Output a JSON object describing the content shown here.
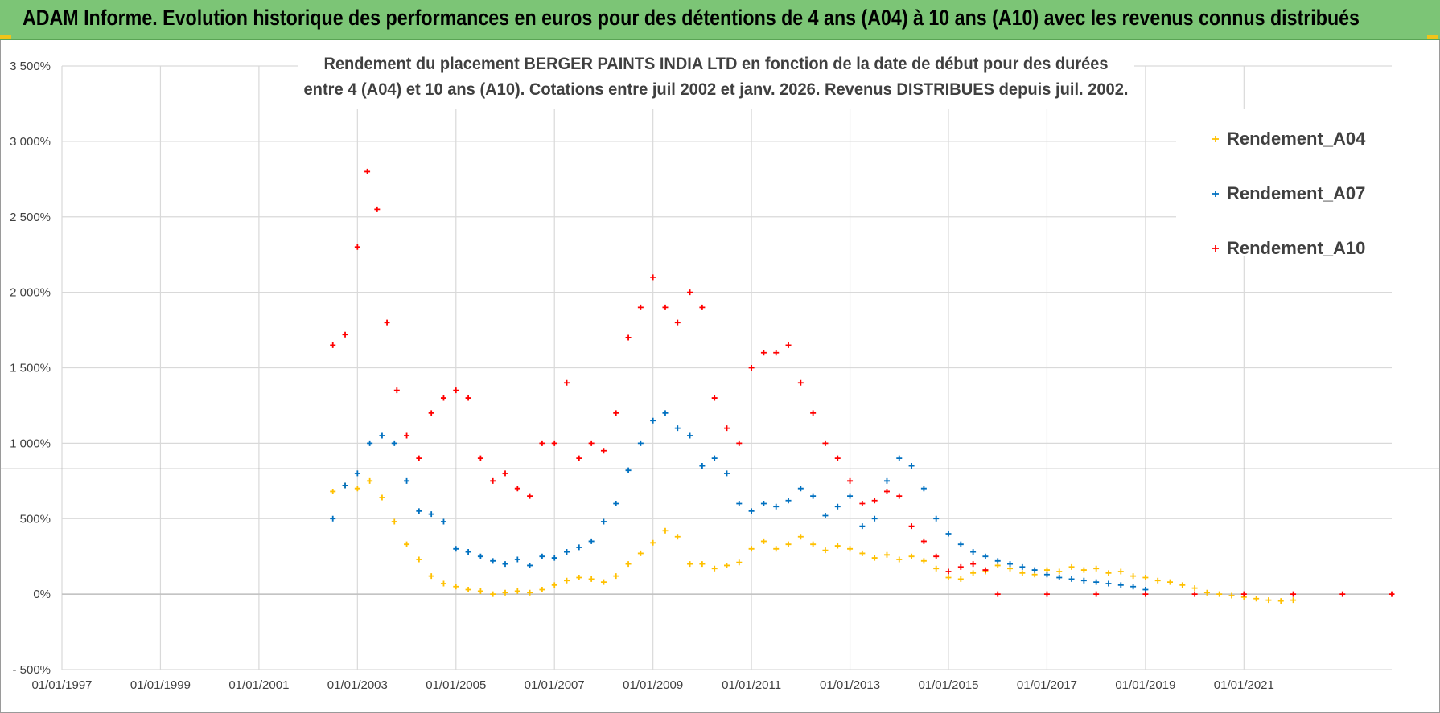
{
  "banner": {
    "title": "ADAM Informe. Evolution historique des performances en euros pour des détentions de 4 ans (A04) à 10 ans (A10) avec les revenus connus distribués"
  },
  "chart_data": {
    "type": "scatter",
    "title_line1": "Rendement du placement BERGER PAINTS INDIA LTD en fonction de la date de début pour des durées",
    "title_line2": "entre 4 (A04) et 10 ans (A10).  Cotations entre juil 2002 et janv. 2026. Revenus DISTRIBUES depuis juil. 2002.",
    "xlim": [
      1997.0,
      2024.0
    ],
    "ylim": [
      -500,
      3500
    ],
    "y_ticks": [
      -500,
      0,
      500,
      1000,
      1500,
      2000,
      2500,
      3000,
      3500
    ],
    "y_tick_labels": [
      "- 500%",
      "0%",
      "500%",
      "1 000%",
      "1 500%",
      "2 000%",
      "2 500%",
      "3 000%",
      "3 500%"
    ],
    "x_ticks": [
      1997,
      1999,
      2001,
      2003,
      2005,
      2007,
      2009,
      2011,
      2013,
      2015,
      2017,
      2019,
      2021
    ],
    "x_tick_labels": [
      "01/01/1997",
      "01/01/1999",
      "01/01/2001",
      "01/01/2003",
      "01/01/2005",
      "01/01/2007",
      "01/01/2009",
      "01/01/2011",
      "01/01/2013",
      "01/01/2015",
      "01/01/2017",
      "01/01/2019",
      "01/01/2021"
    ],
    "grid": true,
    "reference_line_y": 830,
    "legend_position": "top-right",
    "series": [
      {
        "name": "Rendement_A04",
        "color": "#ffc000",
        "points": [
          [
            2002.5,
            680
          ],
          [
            2002.75,
            720
          ],
          [
            2003.0,
            700
          ],
          [
            2003.25,
            750
          ],
          [
            2003.5,
            640
          ],
          [
            2003.75,
            480
          ],
          [
            2004.0,
            330
          ],
          [
            2004.25,
            230
          ],
          [
            2004.5,
            120
          ],
          [
            2004.75,
            70
          ],
          [
            2005.0,
            50
          ],
          [
            2005.25,
            30
          ],
          [
            2005.5,
            20
          ],
          [
            2005.75,
            0
          ],
          [
            2006.0,
            10
          ],
          [
            2006.25,
            20
          ],
          [
            2006.5,
            10
          ],
          [
            2006.75,
            30
          ],
          [
            2007.0,
            60
          ],
          [
            2007.25,
            90
          ],
          [
            2007.5,
            110
          ],
          [
            2007.75,
            100
          ],
          [
            2008.0,
            80
          ],
          [
            2008.25,
            120
          ],
          [
            2008.5,
            200
          ],
          [
            2008.75,
            270
          ],
          [
            2009.0,
            340
          ],
          [
            2009.25,
            420
          ],
          [
            2009.5,
            380
          ],
          [
            2009.75,
            200
          ],
          [
            2010.0,
            200
          ],
          [
            2010.25,
            170
          ],
          [
            2010.5,
            190
          ],
          [
            2010.75,
            210
          ],
          [
            2011.0,
            300
          ],
          [
            2011.25,
            350
          ],
          [
            2011.5,
            300
          ],
          [
            2011.75,
            330
          ],
          [
            2012.0,
            380
          ],
          [
            2012.25,
            330
          ],
          [
            2012.5,
            290
          ],
          [
            2012.75,
            320
          ],
          [
            2013.0,
            300
          ],
          [
            2013.25,
            270
          ],
          [
            2013.5,
            240
          ],
          [
            2013.75,
            260
          ],
          [
            2014.0,
            230
          ],
          [
            2014.25,
            250
          ],
          [
            2014.5,
            220
          ],
          [
            2014.75,
            170
          ],
          [
            2015.0,
            110
          ],
          [
            2015.25,
            100
          ],
          [
            2015.5,
            140
          ],
          [
            2015.75,
            150
          ],
          [
            2016.0,
            190
          ],
          [
            2016.25,
            170
          ],
          [
            2016.5,
            140
          ],
          [
            2016.75,
            130
          ],
          [
            2017.0,
            160
          ],
          [
            2017.25,
            150
          ],
          [
            2017.5,
            180
          ],
          [
            2017.75,
            160
          ],
          [
            2018.0,
            170
          ],
          [
            2018.25,
            140
          ],
          [
            2018.5,
            150
          ],
          [
            2018.75,
            120
          ],
          [
            2019.0,
            110
          ],
          [
            2019.25,
            90
          ],
          [
            2019.5,
            80
          ],
          [
            2019.75,
            60
          ],
          [
            2020.0,
            40
          ],
          [
            2020.25,
            10
          ],
          [
            2020.5,
            0
          ],
          [
            2020.75,
            -10
          ],
          [
            2021.0,
            -20
          ],
          [
            2021.25,
            -30
          ],
          [
            2021.5,
            -40
          ],
          [
            2021.75,
            -45
          ],
          [
            2022.0,
            -40
          ]
        ]
      },
      {
        "name": "Rendement_A07",
        "color": "#0070c0",
        "points": [
          [
            2002.5,
            500
          ],
          [
            2002.75,
            720
          ],
          [
            2003.0,
            800
          ],
          [
            2003.25,
            1000
          ],
          [
            2003.5,
            1050
          ],
          [
            2003.75,
            1000
          ],
          [
            2004.0,
            750
          ],
          [
            2004.25,
            550
          ],
          [
            2004.5,
            530
          ],
          [
            2004.75,
            480
          ],
          [
            2005.0,
            300
          ],
          [
            2005.25,
            280
          ],
          [
            2005.5,
            250
          ],
          [
            2005.75,
            220
          ],
          [
            2006.0,
            200
          ],
          [
            2006.25,
            230
          ],
          [
            2006.5,
            190
          ],
          [
            2006.75,
            250
          ],
          [
            2007.0,
            240
          ],
          [
            2007.25,
            280
          ],
          [
            2007.5,
            310
          ],
          [
            2007.75,
            350
          ],
          [
            2008.0,
            480
          ],
          [
            2008.25,
            600
          ],
          [
            2008.5,
            820
          ],
          [
            2008.75,
            1000
          ],
          [
            2009.0,
            1150
          ],
          [
            2009.25,
            1200
          ],
          [
            2009.5,
            1100
          ],
          [
            2009.75,
            1050
          ],
          [
            2010.0,
            850
          ],
          [
            2010.25,
            900
          ],
          [
            2010.5,
            800
          ],
          [
            2010.75,
            600
          ],
          [
            2011.0,
            550
          ],
          [
            2011.25,
            600
          ],
          [
            2011.5,
            580
          ],
          [
            2011.75,
            620
          ],
          [
            2012.0,
            700
          ],
          [
            2012.25,
            650
          ],
          [
            2012.5,
            520
          ],
          [
            2012.75,
            580
          ],
          [
            2013.0,
            650
          ],
          [
            2013.25,
            450
          ],
          [
            2013.5,
            500
          ],
          [
            2013.75,
            750
          ],
          [
            2014.0,
            900
          ],
          [
            2014.25,
            850
          ],
          [
            2014.5,
            700
          ],
          [
            2014.75,
            500
          ],
          [
            2015.0,
            400
          ],
          [
            2015.25,
            330
          ],
          [
            2015.5,
            280
          ],
          [
            2015.75,
            250
          ],
          [
            2016.0,
            220
          ],
          [
            2016.25,
            200
          ],
          [
            2016.5,
            180
          ],
          [
            2016.75,
            160
          ],
          [
            2017.0,
            130
          ],
          [
            2017.25,
            110
          ],
          [
            2017.5,
            100
          ],
          [
            2017.75,
            90
          ],
          [
            2018.0,
            80
          ],
          [
            2018.25,
            70
          ],
          [
            2018.5,
            60
          ],
          [
            2018.75,
            50
          ],
          [
            2019.0,
            30
          ]
        ]
      },
      {
        "name": "Rendement_A10",
        "color": "#ff0000",
        "points": [
          [
            2002.5,
            1650
          ],
          [
            2002.75,
            1720
          ],
          [
            2003.0,
            2300
          ],
          [
            2003.2,
            2800
          ],
          [
            2003.4,
            2550
          ],
          [
            2003.6,
            1800
          ],
          [
            2003.8,
            1350
          ],
          [
            2004.0,
            1050
          ],
          [
            2004.25,
            900
          ],
          [
            2004.5,
            1200
          ],
          [
            2004.75,
            1300
          ],
          [
            2005.0,
            1350
          ],
          [
            2005.25,
            1300
          ],
          [
            2005.5,
            900
          ],
          [
            2005.75,
            750
          ],
          [
            2006.0,
            800
          ],
          [
            2006.25,
            700
          ],
          [
            2006.5,
            650
          ],
          [
            2006.75,
            1000
          ],
          [
            2007.0,
            1000
          ],
          [
            2007.25,
            1400
          ],
          [
            2007.5,
            900
          ],
          [
            2007.75,
            1000
          ],
          [
            2008.0,
            950
          ],
          [
            2008.25,
            1200
          ],
          [
            2008.5,
            1700
          ],
          [
            2008.75,
            1900
          ],
          [
            2009.0,
            2100
          ],
          [
            2009.25,
            1900
          ],
          [
            2009.5,
            1800
          ],
          [
            2009.75,
            2000
          ],
          [
            2010.0,
            1900
          ],
          [
            2010.25,
            1300
          ],
          [
            2010.5,
            1100
          ],
          [
            2010.75,
            1000
          ],
          [
            2011.0,
            1500
          ],
          [
            2011.25,
            1600
          ],
          [
            2011.5,
            1600
          ],
          [
            2011.75,
            1650
          ],
          [
            2012.0,
            1400
          ],
          [
            2012.25,
            1200
          ],
          [
            2012.5,
            1000
          ],
          [
            2012.75,
            900
          ],
          [
            2013.0,
            750
          ],
          [
            2013.25,
            600
          ],
          [
            2013.5,
            620
          ],
          [
            2013.75,
            680
          ],
          [
            2014.0,
            650
          ],
          [
            2014.25,
            450
          ],
          [
            2014.5,
            350
          ],
          [
            2014.75,
            250
          ],
          [
            2015.0,
            150
          ],
          [
            2015.25,
            180
          ],
          [
            2015.5,
            200
          ],
          [
            2015.75,
            160
          ],
          [
            2016.0,
            0
          ],
          [
            2017.0,
            0
          ],
          [
            2018.0,
            0
          ],
          [
            2019.0,
            0
          ],
          [
            2020.0,
            0
          ],
          [
            2021.0,
            0
          ],
          [
            2022.0,
            0
          ],
          [
            2023.0,
            0
          ],
          [
            2024.0,
            0
          ]
        ]
      }
    ]
  }
}
